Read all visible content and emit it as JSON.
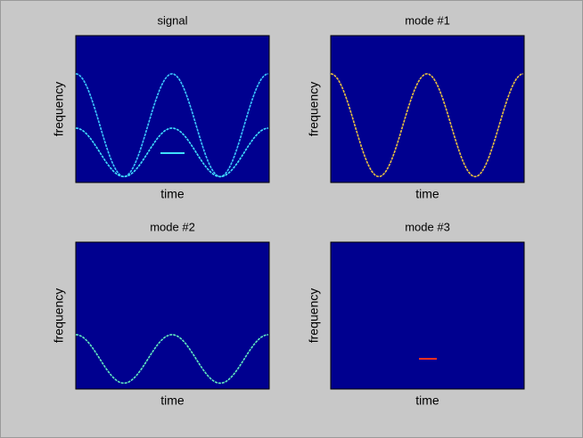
{
  "chart_data": [
    {
      "type": "image",
      "title": "signal",
      "xlabel": "time",
      "ylabel": "frequency"
    },
    {
      "type": "image",
      "title": "mode #1",
      "xlabel": "time",
      "ylabel": "frequency"
    },
    {
      "type": "image",
      "title": "mode #2",
      "xlabel": "time",
      "ylabel": "frequency"
    },
    {
      "type": "image",
      "title": "mode #3",
      "xlabel": "time",
      "ylabel": "frequency"
    }
  ]
}
